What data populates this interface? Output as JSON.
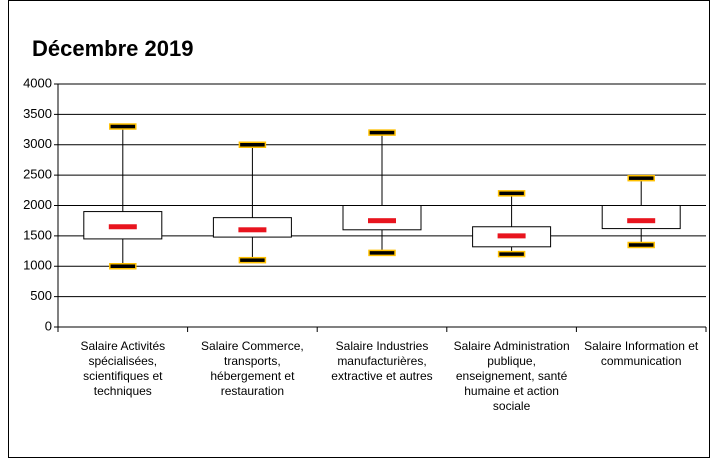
{
  "chart_data": {
    "type": "box",
    "title": "Décembre 2019",
    "categories": [
      "Salaire Activités spécialisées, scientifiques et techniques",
      "Salaire Commerce, transports, hébergement et restauration",
      "Salaire Industries manufacturières, extractive et autres",
      "Salaire Administration publique, enseignement, santé humaine et action sociale",
      "Salaire Information et communication"
    ],
    "boxes": [
      {
        "min": 1000,
        "q1": 1450,
        "median": 1650,
        "q3": 1900,
        "max": 3300
      },
      {
        "min": 1100,
        "q1": 1480,
        "median": 1600,
        "q3": 1800,
        "max": 3000
      },
      {
        "min": 1220,
        "q1": 1600,
        "median": 1750,
        "q3": 2000,
        "max": 3200
      },
      {
        "min": 1200,
        "q1": 1320,
        "median": 1500,
        "q3": 1650,
        "max": 2200
      },
      {
        "min": 1350,
        "q1": 1620,
        "median": 1750,
        "q3": 2000,
        "max": 2450
      }
    ],
    "box_color": "#ffffff",
    "median_color": "#e8141e",
    "cap_color": "#000000",
    "cap_outline": "#ffc000",
    "ylim": [
      0,
      4000
    ],
    "yticks": [
      0,
      500,
      1000,
      1500,
      2000,
      2500,
      3000,
      3500,
      4000
    ],
    "grid": true
  }
}
